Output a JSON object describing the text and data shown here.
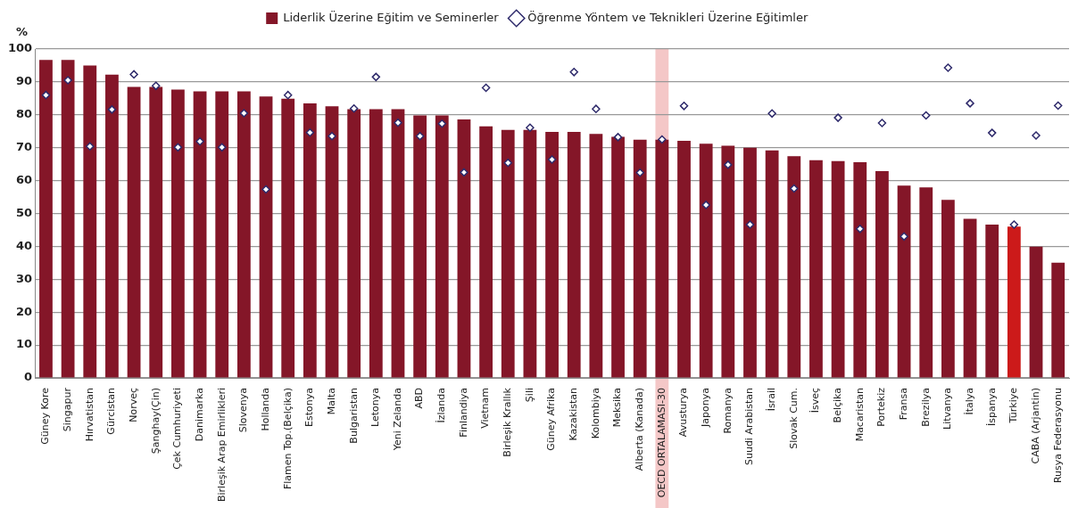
{
  "chart_data": {
    "type": "bar",
    "ylabel": "%",
    "legend": "top",
    "grid": "y",
    "marker": "diamond",
    "categories": [
      "Güney Kore",
      "Singapur",
      "Hırvatistan",
      "Gürcistan",
      "Norveç",
      "Şanghay(Çin)",
      "Çek Cumhuriyeti",
      "Danimarka",
      "Birleşik Arap Emirlikleri",
      "Slovenya",
      "Hollanda",
      "Flamen Top.(Belçika)",
      "Estonya",
      "Malta",
      "Bulgaristan",
      "Letonya",
      "Yeni Zelanda",
      "ABD",
      "İzlanda",
      "Finlandiya",
      "Vietnam",
      "Birleşik Krallık",
      "Şili",
      "Güney Afrika",
      "Kazakistan",
      "Kolombiya",
      "Meksika",
      "Alberta (Kanada)",
      "OECD ORTALAMASI-30",
      "Avusturya",
      "Japonya",
      "Romanya",
      "Suudi Arabistan",
      "İsrail",
      "Slovak Cum.",
      "İsveç",
      "Belçika",
      "Macaristan",
      "Portekiz",
      "Fransa",
      "Brezilya",
      "Litvanya",
      "İtalya",
      "İspanya",
      "Türkiye",
      "CABA (Arjantin)",
      "Rusya Federasyonu"
    ],
    "ylim": [
      0,
      100
    ],
    "yticks": [
      0,
      10,
      20,
      30,
      40,
      50,
      60,
      70,
      80,
      90,
      100
    ],
    "bands": [
      {
        "axis": "x",
        "from": "OECD ORTALAMASI-30",
        "to": "OECD ORTALAMASI-30",
        "color": "#f4c7c7"
      }
    ],
    "series": [
      {
        "name": "Liderlik Üzerine Eğitim ve Seminerler",
        "color": "#841628",
        "colors": [
          "#841628",
          "#841628",
          "#841628",
          "#841628",
          "#841628",
          "#841628",
          "#841628",
          "#841628",
          "#841628",
          "#841628",
          "#841628",
          "#841628",
          "#841628",
          "#841628",
          "#841628",
          "#841628",
          "#841628",
          "#841628",
          "#841628",
          "#841628",
          "#841628",
          "#841628",
          "#841628",
          "#841628",
          "#841628",
          "#841628",
          "#841628",
          "#841628",
          "#841628",
          "#841628",
          "#841628",
          "#841628",
          "#841628",
          "#841628",
          "#841628",
          "#841628",
          "#841628",
          "#841628",
          "#841628",
          "#841628",
          "#841628",
          "#841628",
          "#841628",
          "#841628",
          "#cc1a1a",
          "#841628",
          "#841628"
        ],
        "values": [
          96.7,
          96.7,
          95,
          92.2,
          88.5,
          88.5,
          87.7,
          87.1,
          87.1,
          87.1,
          85.6,
          84.9,
          83.5,
          82.6,
          81.7,
          81.7,
          81.7,
          79.8,
          79.8,
          78.6,
          76.5,
          75.4,
          75.4,
          74.8,
          74.8,
          74.2,
          73.3,
          72.4,
          72.4,
          72.1,
          71.2,
          70.6,
          70,
          69.2,
          67.4,
          66.2,
          65.9,
          65.6,
          62.9,
          58.5,
          57.9,
          54.1,
          48.4,
          46.6,
          46,
          39.9,
          35
        ]
      },
      {
        "name": "Öğrenme Yöntem ve Teknikleri Üzerine Eğitimler",
        "type": "scatter",
        "color": "#2e2a6b",
        "values": [
          86,
          90.5,
          70.4,
          81.6,
          92.3,
          88.8,
          70.1,
          71.9,
          70.1,
          80.5,
          57.3,
          86,
          74.6,
          73.5,
          81.9,
          91.5,
          77.6,
          73.5,
          77.3,
          62.5,
          88.2,
          65.4,
          76.1,
          66.4,
          93,
          81.8,
          73.2,
          62.4,
          72.5,
          82.7,
          52.6,
          64.8,
          46.6,
          80.4,
          57.6,
          null,
          79.1,
          45.3,
          77.5,
          43,
          79.8,
          94.3,
          83.5,
          74.5,
          46.6,
          73.7,
          82.8
        ]
      }
    ]
  }
}
